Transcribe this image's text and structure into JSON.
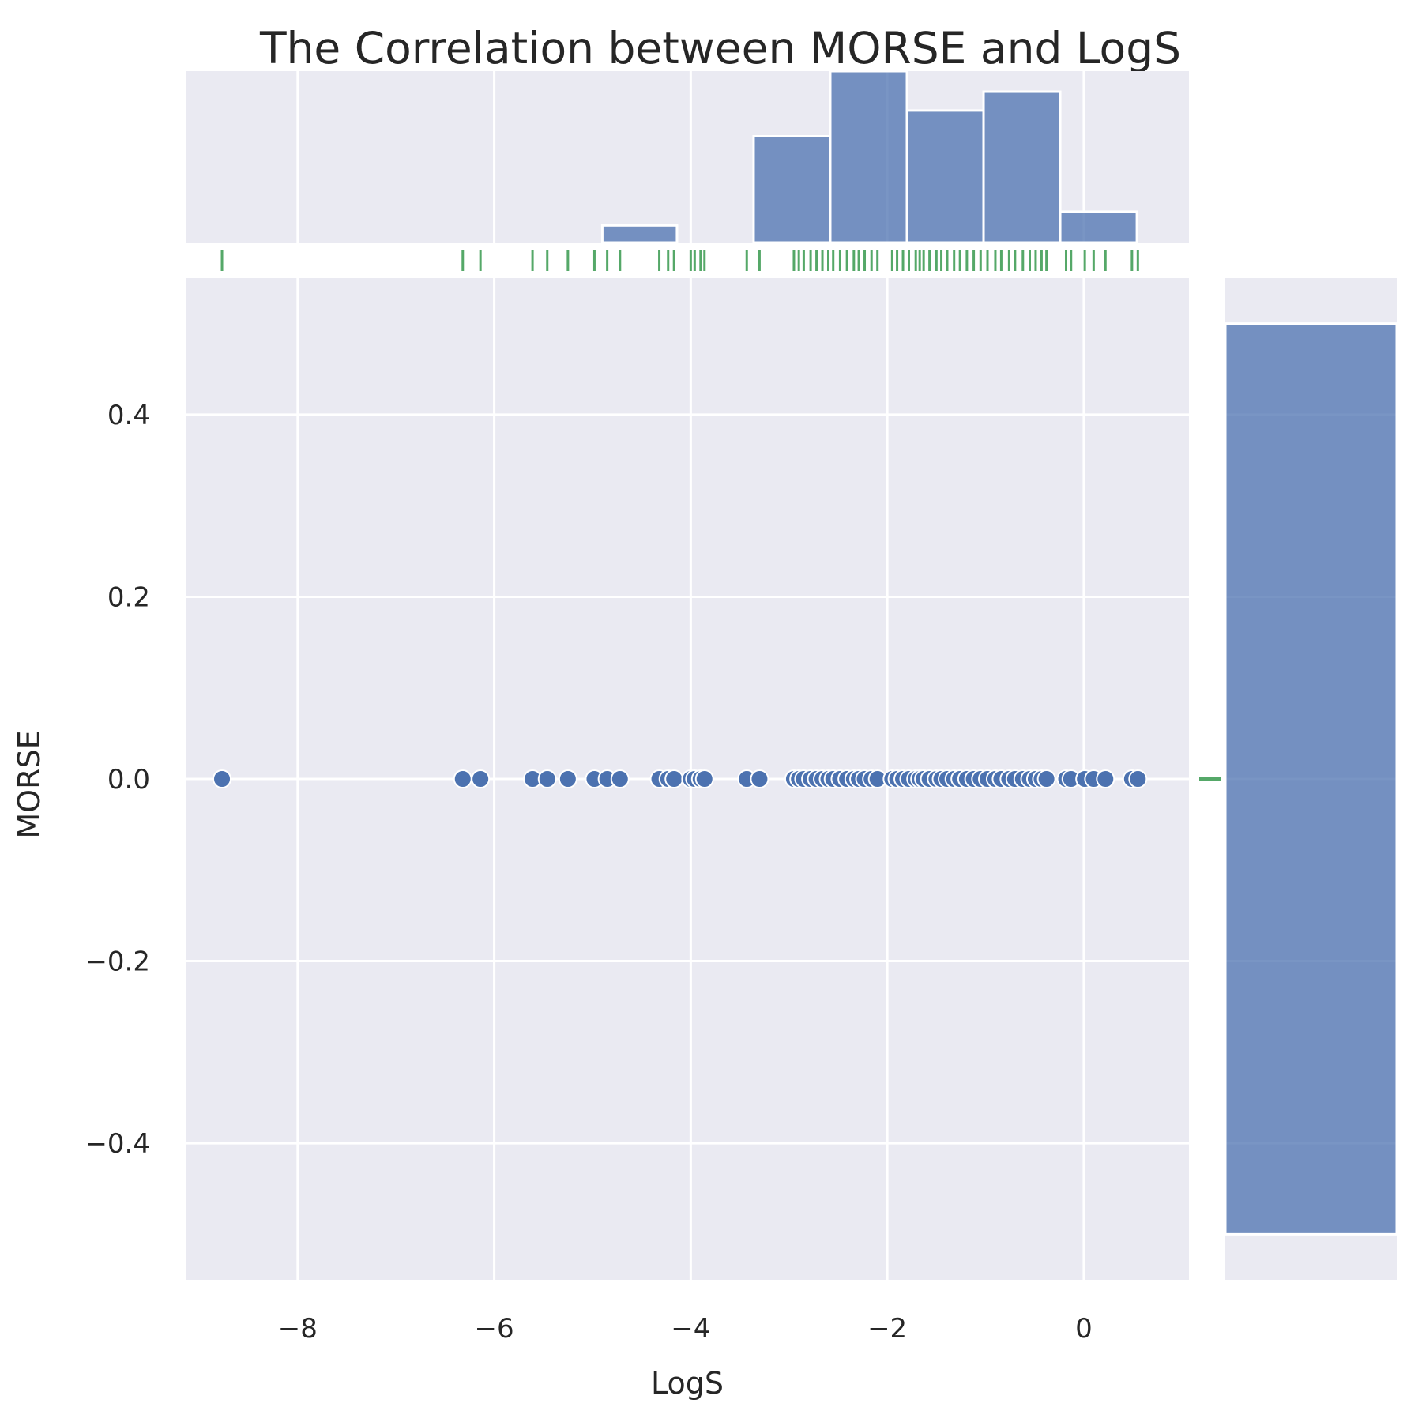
{
  "chart_data": {
    "type": "scatter",
    "title": "The Correlation between MORSE and LogS",
    "xlabel": "LogS",
    "ylabel": "MORSE",
    "xlim": [
      -9.14,
      1.07
    ],
    "ylim": [
      -0.55,
      0.55
    ],
    "x_ticks": [
      -8,
      -6,
      -4,
      -2,
      0
    ],
    "x_tick_labels": [
      "−8",
      "−6",
      "−4",
      "−2",
      "0"
    ],
    "y_ticks": [
      -0.4,
      -0.2,
      0.0,
      0.2,
      0.4
    ],
    "y_tick_labels": [
      "−0.4",
      "−0.2",
      "0.0",
      "0.2",
      "0.4"
    ],
    "grid": true,
    "points_x": [
      -8.77,
      -6.32,
      -6.14,
      -5.61,
      -5.46,
      -5.25,
      -4.98,
      -4.85,
      -4.72,
      -4.32,
      -4.23,
      -4.17,
      -4.0,
      -3.96,
      -3.9,
      -3.86,
      -3.43,
      -3.3,
      -2.95,
      -2.9,
      -2.85,
      -2.78,
      -2.72,
      -2.66,
      -2.6,
      -2.55,
      -2.48,
      -2.41,
      -2.34,
      -2.29,
      -2.23,
      -2.16,
      -2.1,
      -1.95,
      -1.9,
      -1.84,
      -1.78,
      -1.71,
      -1.67,
      -1.63,
      -1.57,
      -1.5,
      -1.45,
      -1.39,
      -1.32,
      -1.26,
      -1.19,
      -1.12,
      -1.05,
      -0.98,
      -0.9,
      -0.84,
      -0.76,
      -0.7,
      -0.62,
      -0.55,
      -0.49,
      -0.43,
      -0.38,
      -0.18,
      -0.13,
      0.01,
      0.1,
      0.22,
      0.49,
      0.55
    ],
    "points_y": [
      0,
      0,
      0,
      0,
      0,
      0,
      0,
      0,
      0,
      0,
      0,
      0,
      0,
      0,
      0,
      0,
      0,
      0,
      0,
      0,
      0,
      0,
      0,
      0,
      0,
      0,
      0,
      0,
      0,
      0,
      0,
      0,
      0,
      0,
      0,
      0,
      0,
      0,
      0,
      0,
      0,
      0,
      0,
      0,
      0,
      0,
      0,
      0,
      0,
      0,
      0,
      0,
      0,
      0,
      0,
      0,
      0,
      0,
      0,
      0,
      0,
      0,
      0,
      0,
      0,
      0
    ],
    "top_histogram": {
      "bin_edges": [
        -4.9,
        -4.14,
        -3.36,
        -2.58,
        -1.8,
        -1.02,
        -0.24,
        0.54
      ],
      "relative_heights": [
        0.1,
        0.0,
        0.62,
        1.0,
        0.77,
        0.88,
        0.18
      ]
    },
    "right_histogram": {
      "bin_edges": [
        -0.5,
        0.5
      ],
      "relative_widths": [
        1.0
      ]
    },
    "colors": {
      "points": "#4c72b0",
      "histogram": "#4c72b0",
      "rug": "#55a868",
      "panel_background": "#eaeaf2",
      "grid": "#ffffff"
    }
  }
}
